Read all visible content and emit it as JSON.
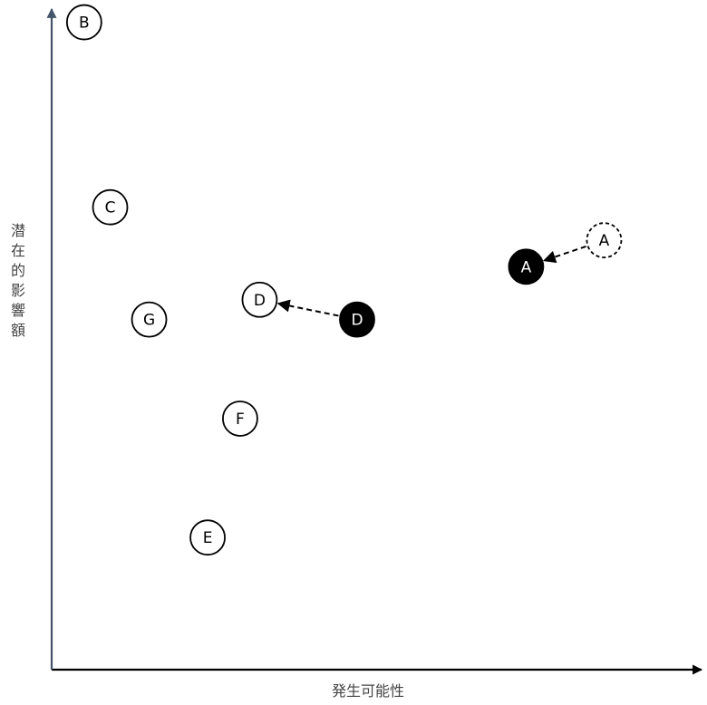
{
  "chart_data": {
    "type": "scatter",
    "xlabel": "発生可能性",
    "ylabel": "潜在的影響額",
    "points": [
      {
        "label": "B",
        "x": 0.05,
        "y": 0.98,
        "style": "open"
      },
      {
        "label": "C",
        "x": 0.09,
        "y": 0.7,
        "style": "open"
      },
      {
        "label": "D",
        "x": 0.32,
        "y": 0.56,
        "style": "open"
      },
      {
        "label": "G",
        "x": 0.15,
        "y": 0.53,
        "style": "open"
      },
      {
        "label": "F",
        "x": 0.29,
        "y": 0.38,
        "style": "open"
      },
      {
        "label": "E",
        "x": 0.24,
        "y": 0.2,
        "style": "open"
      },
      {
        "label": "A",
        "x": 0.85,
        "y": 0.65,
        "style": "dashed"
      },
      {
        "label": "A",
        "x": 0.73,
        "y": 0.61,
        "style": "filled"
      },
      {
        "label": "D",
        "x": 0.47,
        "y": 0.53,
        "style": "filled"
      }
    ],
    "arrows": [
      {
        "from": 6,
        "to": 7
      },
      {
        "from": 8,
        "to": 2
      }
    ]
  }
}
